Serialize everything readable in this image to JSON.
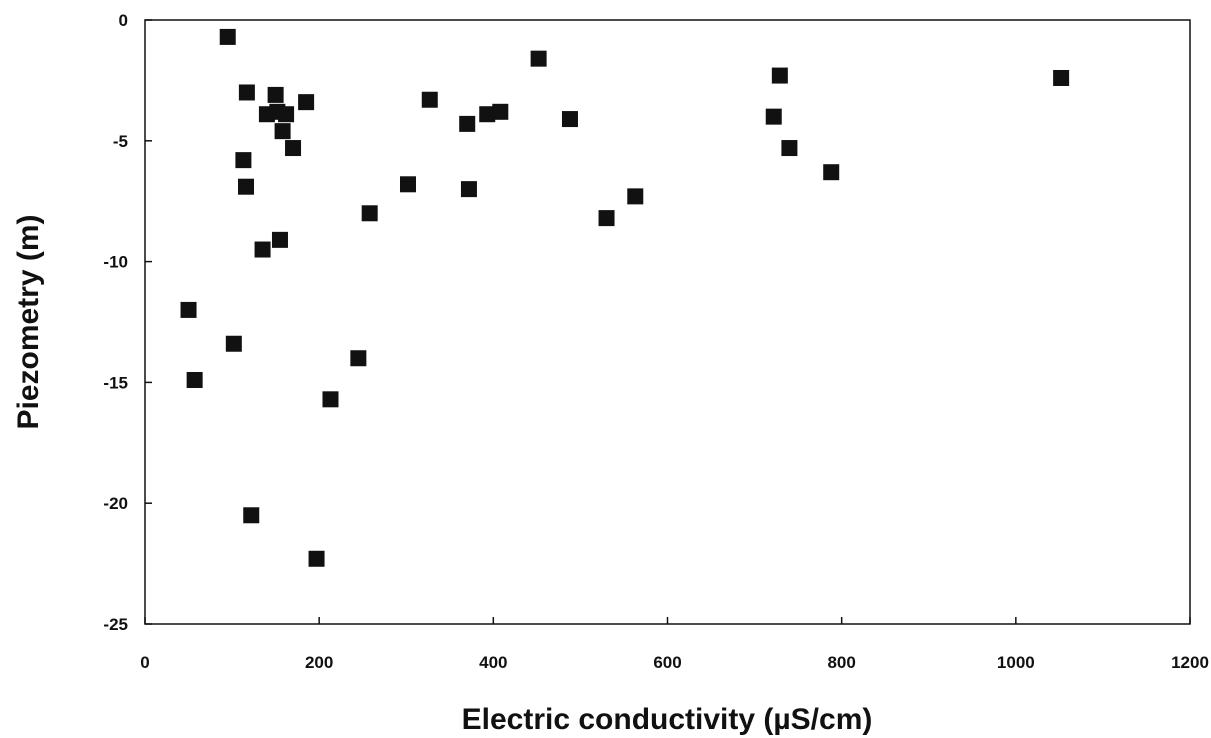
{
  "chart_data": {
    "type": "scatter",
    "title": "",
    "xlabel": "Electric conductivity (µS/cm)",
    "ylabel": "Piezometry (m)",
    "xlim": [
      0,
      1200
    ],
    "ylim": [
      -25,
      0
    ],
    "xticks": [
      0,
      200,
      400,
      600,
      800,
      1000,
      1200
    ],
    "yticks": [
      0,
      -5,
      -10,
      -15,
      -20,
      -25
    ],
    "xtick_labels": [
      "0",
      "200",
      "400",
      "600",
      "800",
      "1000",
      "1200"
    ],
    "ytick_labels": [
      "0",
      "-5",
      "-10",
      "-15",
      "-20",
      "-25"
    ],
    "grid": false,
    "marker": "filled-square",
    "marker_color": "#111111",
    "series": [
      {
        "points": [
          {
            "x": 95,
            "y": -0.7
          },
          {
            "x": 117,
            "y": -3.0
          },
          {
            "x": 150,
            "y": -3.1
          },
          {
            "x": 185,
            "y": -3.4
          },
          {
            "x": 140,
            "y": -3.9
          },
          {
            "x": 152,
            "y": -3.8
          },
          {
            "x": 162,
            "y": -3.9
          },
          {
            "x": 158,
            "y": -4.6
          },
          {
            "x": 170,
            "y": -5.3
          },
          {
            "x": 113,
            "y": -5.8
          },
          {
            "x": 116,
            "y": -6.9
          },
          {
            "x": 135,
            "y": -9.5
          },
          {
            "x": 155,
            "y": -9.1
          },
          {
            "x": 50,
            "y": -12.0
          },
          {
            "x": 102,
            "y": -13.4
          },
          {
            "x": 57,
            "y": -14.9
          },
          {
            "x": 122,
            "y": -20.5
          },
          {
            "x": 197,
            "y": -22.3
          },
          {
            "x": 213,
            "y": -15.7
          },
          {
            "x": 245,
            "y": -14.0
          },
          {
            "x": 258,
            "y": -8.0
          },
          {
            "x": 302,
            "y": -6.8
          },
          {
            "x": 327,
            "y": -3.3
          },
          {
            "x": 370,
            "y": -4.3
          },
          {
            "x": 372,
            "y": -7.0
          },
          {
            "x": 393,
            "y": -3.9
          },
          {
            "x": 408,
            "y": -3.8
          },
          {
            "x": 452,
            "y": -1.6
          },
          {
            "x": 488,
            "y": -4.1
          },
          {
            "x": 530,
            "y": -8.2
          },
          {
            "x": 563,
            "y": -7.3
          },
          {
            "x": 722,
            "y": -4.0
          },
          {
            "x": 729,
            "y": -2.3
          },
          {
            "x": 740,
            "y": -5.3
          },
          {
            "x": 788,
            "y": -6.3
          },
          {
            "x": 1052,
            "y": -2.4
          }
        ]
      }
    ]
  }
}
